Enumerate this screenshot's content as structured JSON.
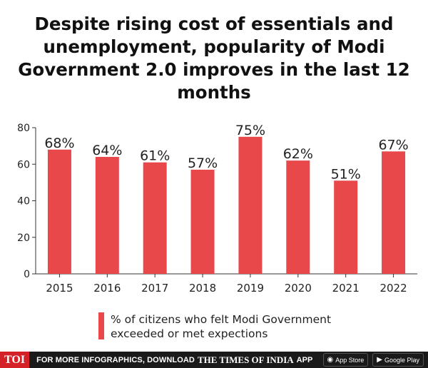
{
  "title": "Despite rising cost of essentials and unemployment, popularity of Modi Government 2.0 improves in the last 12 months",
  "chart_data": {
    "type": "bar",
    "categories": [
      "2015",
      "2016",
      "2017",
      "2018",
      "2019",
      "2020",
      "2021",
      "2022"
    ],
    "values": [
      68,
      64,
      61,
      57,
      75,
      62,
      51,
      67
    ],
    "labels": [
      "68%",
      "64%",
      "61%",
      "57%",
      "75%",
      "62%",
      "51%",
      "67%"
    ],
    "yticks": [
      "0",
      "20",
      "40",
      "60",
      "80"
    ],
    "ylim": [
      0,
      80
    ],
    "bar_color": "#e8484a",
    "legend": "% of citizens who felt Modi Government exceeded or met expections"
  },
  "footer": {
    "logo": "TOI",
    "text": "FOR MORE INFOGRAPHICS, DOWNLOAD",
    "brand": "THE TIMES OF INDIA",
    "app": "APP",
    "app_store": "App Store",
    "google_play": "Google Play"
  }
}
